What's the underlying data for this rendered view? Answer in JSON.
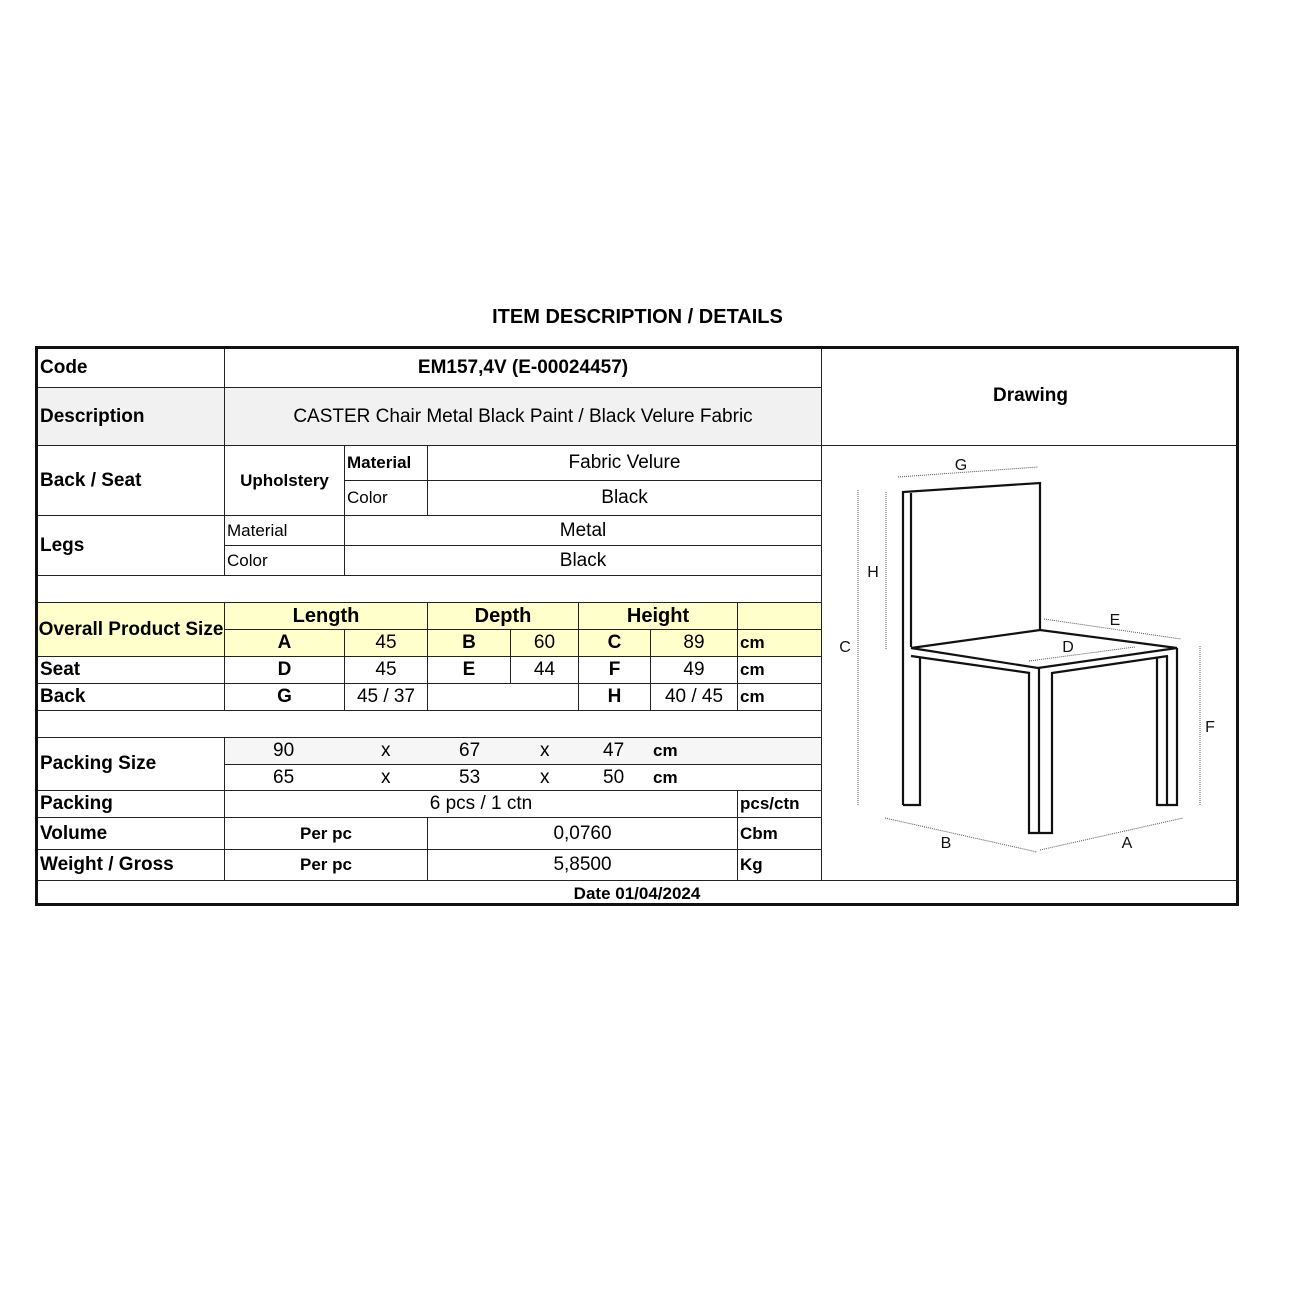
{
  "title": "ITEM DESCRIPTION / DETAILS",
  "code": {
    "label": "Code",
    "value": "EM157,4V (E-00024457)"
  },
  "description": {
    "label": "Description",
    "value": "CASTER Chair Metal Black Paint / Black Velure Fabric"
  },
  "drawing": {
    "label": "Drawing",
    "dimension_labels": [
      "A",
      "B",
      "C",
      "D",
      "E",
      "F",
      "G",
      "H"
    ]
  },
  "back_seat": {
    "label": "Back / Seat",
    "group": "Upholstery",
    "material_label": "Material",
    "material": "Fabric Velure",
    "color_label": "Color",
    "color": "Black"
  },
  "legs": {
    "label": "Legs",
    "material_label": "Material",
    "material": "Metal",
    "color_label": "Color",
    "color": "Black"
  },
  "size": {
    "label": "Overall Product Size",
    "headers": {
      "length": "Length",
      "depth": "Depth",
      "height": "Height"
    },
    "overall": {
      "l_key": "A",
      "l": "45",
      "d_key": "B",
      "d": "60",
      "h_key": "C",
      "h": "89",
      "unit": "cm"
    },
    "seat": {
      "label": "Seat",
      "l_key": "D",
      "l": "45",
      "d_key": "E",
      "d": "44",
      "h_key": "F",
      "h": "49",
      "unit": "cm"
    },
    "back": {
      "label": "Back",
      "l_key": "G",
      "l": "45 / 37",
      "h_key": "H",
      "h": "40 / 45",
      "unit": "cm"
    }
  },
  "packing_size": {
    "label": "Packing Size",
    "rows": [
      {
        "a": "90",
        "x1": "x",
        "b": "67",
        "x2": "x",
        "c": "47",
        "unit": "cm"
      },
      {
        "a": "65",
        "x1": "x",
        "b": "53",
        "x2": "x",
        "c": "50",
        "unit": "cm"
      }
    ]
  },
  "packing": {
    "label": "Packing",
    "value": "6 pcs / 1 ctn",
    "unit": "pcs/ctn"
  },
  "volume": {
    "label": "Volume",
    "per": "Per pc",
    "value": "0,0760",
    "unit": "Cbm"
  },
  "weight": {
    "label": "Weight / Gross",
    "per": "Per pc",
    "value": "5,8500",
    "unit": "Kg"
  },
  "date": "Date 01/04/2024",
  "colors": {
    "highlight": "#ffffcc",
    "shade": "#f1f1f1"
  }
}
